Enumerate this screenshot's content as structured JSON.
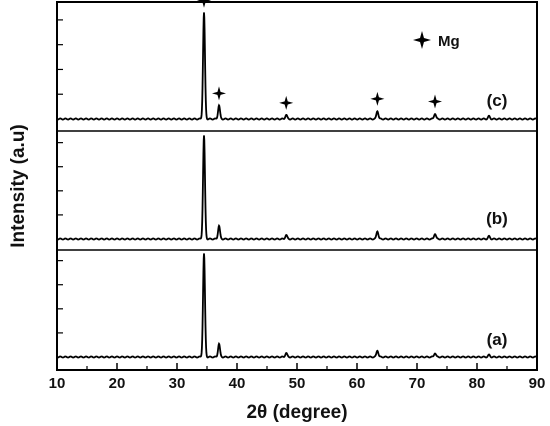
{
  "chart_data": {
    "type": "line",
    "xlabel": "2θ (degree)",
    "ylabel": "Intensity (a.u)",
    "xlim": [
      10,
      90
    ],
    "x_ticks": [
      "10",
      "20",
      "30",
      "40",
      "50",
      "60",
      "70",
      "80",
      "90"
    ],
    "grid": false,
    "legend": {
      "label": "Mg",
      "marker": "four-point-star",
      "placement": "top-right"
    },
    "line_color": "#000000",
    "series": [
      {
        "name": "(a)",
        "peaks": [
          {
            "x": 34.5,
            "y": 0.78
          },
          {
            "x": 37.0,
            "y": 0.1
          },
          {
            "x": 48.2,
            "y": 0.03
          },
          {
            "x": 63.4,
            "y": 0.05
          },
          {
            "x": 73.0,
            "y": 0.03
          },
          {
            "x": 82.0,
            "y": 0.015
          }
        ]
      },
      {
        "name": "(b)",
        "peaks": [
          {
            "x": 34.5,
            "y": 0.78
          },
          {
            "x": 37.0,
            "y": 0.1
          },
          {
            "x": 48.2,
            "y": 0.03
          },
          {
            "x": 63.4,
            "y": 0.06
          },
          {
            "x": 73.0,
            "y": 0.04
          },
          {
            "x": 82.0,
            "y": 0.02
          }
        ]
      },
      {
        "name": "(c)",
        "peaks": [
          {
            "x": 34.5,
            "y": 0.78
          },
          {
            "x": 37.0,
            "y": 0.1
          },
          {
            "x": 48.2,
            "y": 0.03
          },
          {
            "x": 63.4,
            "y": 0.06
          },
          {
            "x": 73.0,
            "y": 0.04
          },
          {
            "x": 82.0,
            "y": 0.02
          }
        ]
      }
    ],
    "markers": [
      {
        "series": "(c)",
        "x": 34.5,
        "label": "Mg"
      },
      {
        "series": "(c)",
        "x": 37.0,
        "label": "Mg"
      },
      {
        "series": "(c)",
        "x": 48.2,
        "label": "Mg"
      },
      {
        "series": "(c)",
        "x": 63.4,
        "label": "Mg"
      },
      {
        "series": "(c)",
        "x": 73.0,
        "label": "Mg"
      }
    ]
  }
}
